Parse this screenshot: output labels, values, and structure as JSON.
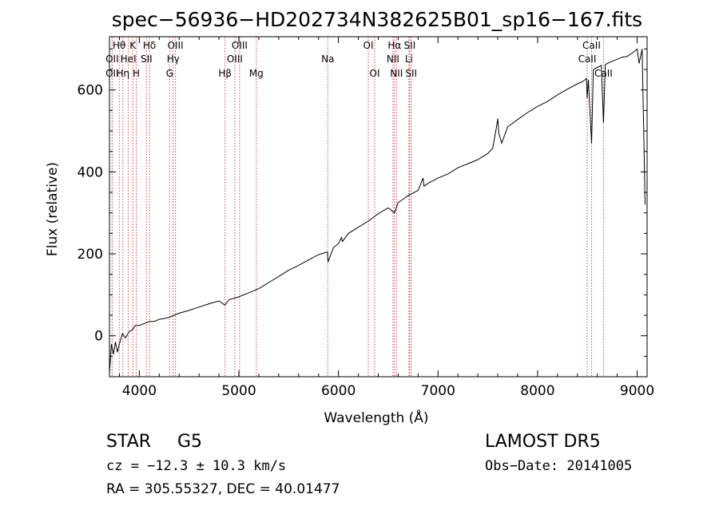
{
  "chart_data": {
    "type": "line",
    "title": "spec−56936−HD202734N382625B01_sp16−167.fits",
    "xlabel": "Wavelength (Å)",
    "ylabel": "Flux (relative)",
    "xlim": [
      3700,
      9100
    ],
    "ylim": [
      -100,
      730
    ],
    "xticks": [
      4000,
      5000,
      6000,
      7000,
      8000,
      9000
    ],
    "yticks": [
      0,
      200,
      400,
      600
    ],
    "grid": false,
    "series": [
      {
        "x": [
          3700,
          3720,
          3740,
          3760,
          3780,
          3800,
          3830,
          3860,
          3900,
          3930,
          3960,
          4000,
          4050,
          4100,
          4150,
          4200,
          4250,
          4300,
          4350,
          4400,
          4500,
          4600,
          4700,
          4800,
          4860,
          4900,
          5000,
          5100,
          5200,
          5300,
          5400,
          5500,
          5600,
          5700,
          5800,
          5890,
          5895,
          5950,
          6000,
          6030,
          6040,
          6100,
          6200,
          6300,
          6400,
          6500,
          6563,
          6600,
          6700,
          6800,
          6850,
          6860,
          6900,
          7000,
          7100,
          7200,
          7300,
          7400,
          7500,
          7550,
          7580,
          7600,
          7610,
          7640,
          7700,
          7800,
          7900,
          8000,
          8100,
          8200,
          8300,
          8400,
          8450,
          8490,
          8498,
          8510,
          8542,
          8560,
          8600,
          8640,
          8662,
          8680,
          8700,
          8750,
          8800,
          8850,
          8900,
          8950,
          9000,
          9020,
          9050,
          9080
        ],
        "values": [
          -90,
          -20,
          -45,
          -15,
          -40,
          -20,
          5,
          -5,
          10,
          15,
          25,
          25,
          30,
          35,
          35,
          40,
          42,
          45,
          50,
          55,
          62,
          70,
          78,
          85,
          75,
          88,
          95,
          105,
          115,
          130,
          145,
          160,
          172,
          185,
          198,
          205,
          180,
          215,
          225,
          240,
          230,
          250,
          265,
          280,
          298,
          312,
          300,
          325,
          342,
          355,
          385,
          365,
          372,
          385,
          395,
          410,
          420,
          430,
          445,
          458,
          500,
          530,
          495,
          470,
          510,
          528,
          545,
          560,
          572,
          588,
          602,
          615,
          620,
          628,
          580,
          625,
          470,
          650,
          655,
          660,
          520,
          662,
          665,
          670,
          675,
          680,
          682,
          690,
          700,
          665,
          700,
          320
        ]
      }
    ],
    "emission_lines": [
      {
        "label": "Hθ",
        "wl": 3798,
        "row": 1
      },
      {
        "label": "OII",
        "wl": 3727,
        "row": 2
      },
      {
        "label": "OII",
        "wl": 3727,
        "row": 3
      },
      {
        "label": "K",
        "wl": 3934,
        "row": 1
      },
      {
        "label": "HeI",
        "wl": 3889,
        "row": 2
      },
      {
        "label": "Hη",
        "wl": 3835,
        "row": 3
      },
      {
        "label": "Hδ",
        "wl": 4102,
        "row": 1
      },
      {
        "label": "SII",
        "wl": 4072,
        "row": 2
      },
      {
        "label": "H",
        "wl": 3969,
        "row": 3
      },
      {
        "label": "OIII",
        "wl": 4363,
        "row": 1
      },
      {
        "label": "Hγ",
        "wl": 4340,
        "row": 2
      },
      {
        "label": "G",
        "wl": 4305,
        "row": 3
      },
      {
        "label": "OIII",
        "wl": 5007,
        "row": 1
      },
      {
        "label": "OIII",
        "wl": 4959,
        "row": 2
      },
      {
        "label": "Hβ",
        "wl": 4861,
        "row": 3
      },
      {
        "label": "Mg",
        "wl": 5175,
        "row": 3
      },
      {
        "label": "Na",
        "wl": 5893,
        "row": 2
      },
      {
        "label": "OI",
        "wl": 6300,
        "row": 1
      },
      {
        "label": "OI",
        "wl": 6364,
        "row": 3
      },
      {
        "label": "Hα",
        "wl": 6563,
        "row": 1
      },
      {
        "label": "NII",
        "wl": 6548,
        "row": 2
      },
      {
        "label": "NII",
        "wl": 6583,
        "row": 3
      },
      {
        "label": "SII",
        "wl": 6716,
        "row": 1
      },
      {
        "label": "Li",
        "wl": 6708,
        "row": 2
      },
      {
        "label": "SII",
        "wl": 6731,
        "row": 3
      },
      {
        "label": "CaII",
        "wl": 8542,
        "row": 1
      },
      {
        "label": "CaII",
        "wl": 8498,
        "row": 2
      },
      {
        "label": "CaII",
        "wl": 8662,
        "row": 3
      }
    ]
  },
  "info": {
    "object_type": "STAR",
    "subclass": "G5",
    "survey": "LAMOST DR5",
    "cz": "cz = −12.3 ± 10.3 km/s",
    "obs_date": "Obs−Date: 20141005",
    "coords": "RA = 305.55327, DEC =  40.01477"
  },
  "colors": {
    "spectrum": "#000000",
    "line_markers": "#d04a4a",
    "background": "#ffffff"
  }
}
